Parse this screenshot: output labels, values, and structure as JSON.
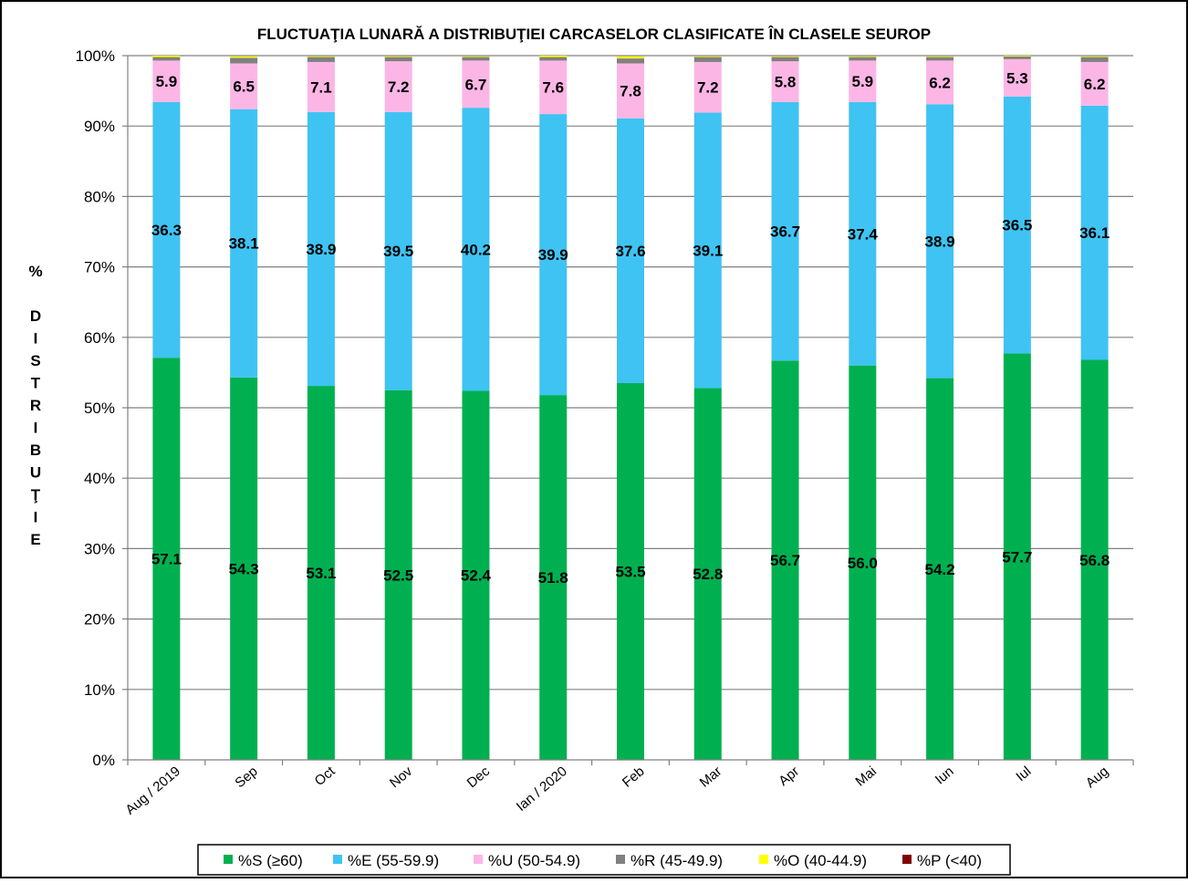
{
  "chart_data": {
    "type": "bar",
    "stacked": true,
    "title": "FLUCTUAŢIA LUNARĂ  A DISTRIBUŢIEI  CARCASELOR CLASIFICATE ÎN CLASELE SEUROP",
    "xlabel": "",
    "ylabel": "% DISTRIBUŢIE",
    "ylabel_chars": [
      "%",
      "",
      "D",
      "I",
      "S",
      "T",
      "R",
      "I",
      "B",
      "U",
      "Ţ",
      "I",
      "E"
    ],
    "ylim": [
      0,
      100
    ],
    "yticks": [
      "0%",
      "10%",
      "20%",
      "30%",
      "40%",
      "50%",
      "60%",
      "70%",
      "80%",
      "90%",
      "100%"
    ],
    "grid": true,
    "legend_position": "bottom",
    "categories": [
      "Aug / 2019",
      "Sep",
      "Oct",
      "Nov",
      "Dec",
      "Ian / 2020",
      "Feb",
      "Mar",
      "Apr",
      "Mai",
      "Iun",
      "Iul",
      "Aug"
    ],
    "series": [
      {
        "name": "%S (≥60)",
        "color": "#00b050",
        "labels": [
          "57.1",
          "54.3",
          "53.1",
          "52.5",
          "52.4",
          "51.8",
          "53.5",
          "52.8",
          "56.7",
          "56.0",
          "54.2",
          "57.7",
          "56.8"
        ],
        "values": [
          57.1,
          54.3,
          53.1,
          52.5,
          52.4,
          51.8,
          53.5,
          52.8,
          56.7,
          56.0,
          54.2,
          57.7,
          56.8
        ]
      },
      {
        "name": "%E (55-59.9)",
        "color": "#3fc3f3",
        "labels": [
          "36.3",
          "38.1",
          "38.9",
          "39.5",
          "40.2",
          "39.9",
          "37.6",
          "39.1",
          "36.7",
          "37.4",
          "38.9",
          "36.5",
          "36.1"
        ],
        "values": [
          36.3,
          38.1,
          38.9,
          39.5,
          40.2,
          39.9,
          37.6,
          39.1,
          36.7,
          37.4,
          38.9,
          36.5,
          36.1
        ]
      },
      {
        "name": "%U (50-54.9)",
        "color": "#fbb6e6",
        "labels": [
          "5.9",
          "6.5",
          "7.1",
          "7.2",
          "6.7",
          "7.6",
          "7.8",
          "7.2",
          "5.8",
          "5.9",
          "6.2",
          "5.3",
          "6.2"
        ],
        "values": [
          5.9,
          6.5,
          7.1,
          7.2,
          6.7,
          7.6,
          7.8,
          7.2,
          5.8,
          5.9,
          6.2,
          5.3,
          6.2
        ]
      },
      {
        "name": "%R (45-49.9)",
        "color": "#808080",
        "values": [
          0.5,
          0.8,
          0.7,
          0.6,
          0.5,
          0.5,
          0.7,
          0.7,
          0.6,
          0.5,
          0.5,
          0.4,
          0.7
        ]
      },
      {
        "name": "%O (40-44.9)",
        "color": "#ffff00",
        "values": [
          0.2,
          0.2,
          0.1,
          0.1,
          0.1,
          0.2,
          0.3,
          0.1,
          0.1,
          0.1,
          0.1,
          0.1,
          0.1
        ]
      },
      {
        "name": "%P (<40)",
        "color": "#7f0000",
        "values": [
          0.0,
          0.0,
          0.0,
          0.0,
          0.0,
          0.0,
          0.0,
          0.0,
          0.0,
          0.0,
          0.0,
          0.0,
          0.0
        ]
      }
    ]
  }
}
